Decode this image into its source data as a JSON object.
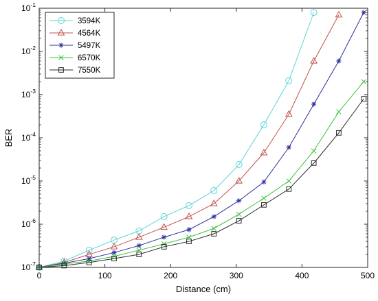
{
  "chart_data": {
    "type": "line",
    "title": "",
    "xlabel": "Distance (cm)",
    "ylabel": "BER",
    "xlim": [
      0,
      500
    ],
    "ylim": [
      1e-07,
      0.1
    ],
    "yscale": "log",
    "x_ticks": [
      "0",
      "100",
      "200",
      "300",
      "400",
      "500"
    ],
    "y_ticks": [
      {
        "base": "10",
        "exp": "-7"
      },
      {
        "base": "10",
        "exp": "-6"
      },
      {
        "base": "10",
        "exp": "-5"
      },
      {
        "base": "10",
        "exp": "-4"
      },
      {
        "base": "10",
        "exp": "-3"
      },
      {
        "base": "10",
        "exp": "-2"
      },
      {
        "base": "10",
        "exp": "-1"
      }
    ],
    "grid": false,
    "legend_position": "top-left",
    "series": [
      {
        "name": "3594K",
        "color": "#5ed3d8",
        "marker": "circle",
        "x": [
          0,
          38,
          76,
          114,
          152,
          190,
          228,
          266,
          304,
          342,
          380,
          418
        ],
        "y": [
          1e-07,
          1.4e-07,
          2.5e-07,
          4.3e-07,
          7e-07,
          1.5e-06,
          2.7e-06,
          6e-06,
          2.4e-05,
          0.0002,
          0.0021,
          0.08
        ]
      },
      {
        "name": "4564K",
        "color": "#c0504d",
        "marker": "triangle",
        "x": [
          0,
          38,
          76,
          114,
          152,
          190,
          228,
          266,
          304,
          342,
          380,
          418,
          456
        ],
        "y": [
          1e-07,
          1.3e-07,
          2e-07,
          3e-07,
          5e-07,
          8.5e-07,
          1.5e-06,
          3e-06,
          1e-05,
          4.5e-05,
          0.00035,
          0.006,
          0.07
        ]
      },
      {
        "name": "5497K",
        "color": "#2b2e9e",
        "marker": "star",
        "x": [
          0,
          38,
          76,
          114,
          152,
          190,
          228,
          266,
          304,
          342,
          380,
          418,
          456,
          494
        ],
        "y": [
          1e-07,
          1.25e-07,
          1.6e-07,
          2.2e-07,
          3.2e-07,
          5e-07,
          7.5e-07,
          1.5e-06,
          3.5e-06,
          9.5e-06,
          6e-05,
          0.0006,
          0.006,
          0.08
        ]
      },
      {
        "name": "6570K",
        "color": "#3cc43c",
        "marker": "x",
        "x": [
          0,
          38,
          76,
          114,
          152,
          190,
          228,
          266,
          304,
          342,
          380,
          418,
          456,
          494
        ],
        "y": [
          1e-07,
          1.2e-07,
          1.4e-07,
          1.8e-07,
          2.5e-07,
          3.5e-07,
          5e-07,
          8e-07,
          1.7e-06,
          4e-06,
          1e-05,
          5e-05,
          0.0004,
          0.002
        ]
      },
      {
        "name": "7550K",
        "color": "#2a2a2a",
        "marker": "square",
        "x": [
          0,
          38,
          76,
          114,
          152,
          190,
          228,
          266,
          304,
          342,
          380,
          418,
          456,
          494
        ],
        "y": [
          1e-07,
          1.1e-07,
          1.3e-07,
          1.6e-07,
          2e-07,
          3e-07,
          4e-07,
          6e-07,
          1.2e-06,
          2.8e-06,
          6.5e-06,
          2.6e-05,
          0.00013,
          0.0008
        ]
      }
    ]
  }
}
